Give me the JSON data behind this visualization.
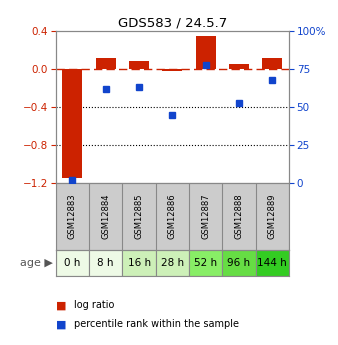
{
  "title": "GDS583 / 24.5.7",
  "samples": [
    "GSM12883",
    "GSM12884",
    "GSM12885",
    "GSM12886",
    "GSM12887",
    "GSM12888",
    "GSM12889"
  ],
  "ages": [
    "0 h",
    "8 h",
    "16 h",
    "28 h",
    "52 h",
    "96 h",
    "144 h"
  ],
  "log_ratio": [
    -1.15,
    0.12,
    0.08,
    -0.02,
    0.35,
    0.05,
    0.12
  ],
  "percentile": [
    2,
    62,
    63,
    45,
    78,
    53,
    68
  ],
  "bar_color": "#cc2200",
  "dot_color": "#1144cc",
  "ylim_left": [
    -1.2,
    0.4
  ],
  "yticks_left": [
    0.4,
    0.0,
    -0.4,
    -0.8,
    -1.2
  ],
  "yticks_right": [
    100,
    75,
    50,
    25,
    0
  ],
  "ylim_right": [
    0,
    100
  ],
  "age_colors": [
    "#eefae6",
    "#eefae6",
    "#cdf0b8",
    "#cdf0b8",
    "#88ee66",
    "#66dd44",
    "#33cc22"
  ],
  "sample_bg": "#cccccc",
  "legend_bar_label": "log ratio",
  "legend_dot_label": "percentile rank within the sample",
  "background_color": "#ffffff"
}
